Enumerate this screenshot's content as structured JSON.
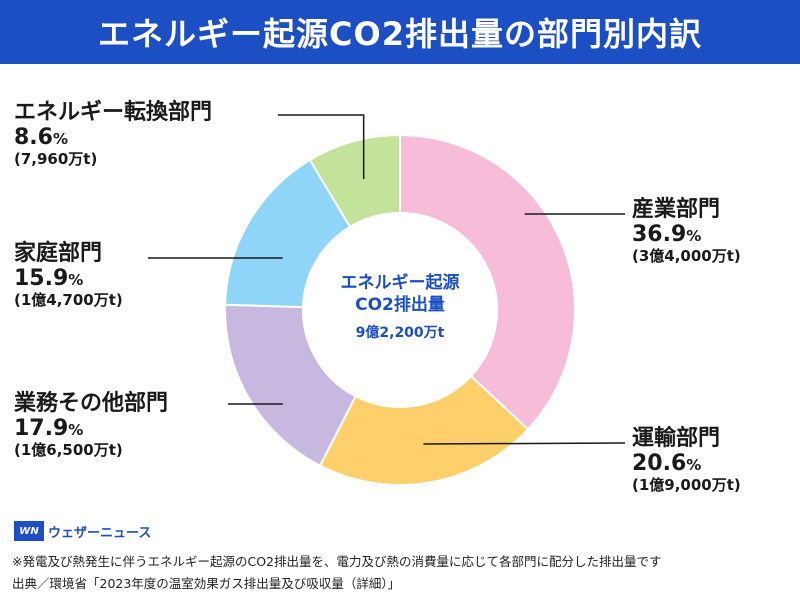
{
  "header": {
    "title": "エネルギー起源CO2排出量の部門別内訳"
  },
  "center": {
    "line1": "エネルギー起源",
    "line2": "CO2排出量",
    "total": "9億2,200万t"
  },
  "chart_data": {
    "type": "pie",
    "donut": true,
    "unit": "%",
    "slices": [
      {
        "name": "産業部門",
        "value": 36.9,
        "amount": "(3億4,000万t)",
        "color": "#f7bcd7"
      },
      {
        "name": "運輸部門",
        "value": 20.6,
        "amount": "(1億9,000万t)",
        "color": "#fdd06b"
      },
      {
        "name": "業務その他部門",
        "value": 17.9,
        "amount": "(1億6,500万t)",
        "color": "#c6b8de"
      },
      {
        "name": "家庭部門",
        "value": 15.9,
        "amount": "(1億4,700万t)",
        "color": "#8fd5f7"
      },
      {
        "name": "エネルギー転換部門",
        "value": 8.6,
        "amount": "(7,960万t)",
        "color": "#c3e39b"
      }
    ]
  },
  "brand": {
    "logo": "WN",
    "name": "ウェザーニュース",
    "logo_color": "#1c4fc4"
  },
  "footnote": "※発電及び熱発生に伴うエネルギー起源のCO2排出量を、電力及び熱の消費量に応じて各部門に配分した排出量です",
  "source": "出典／環境省「2023年度の温室効果ガス排出量及び吸収量（詳細）」"
}
